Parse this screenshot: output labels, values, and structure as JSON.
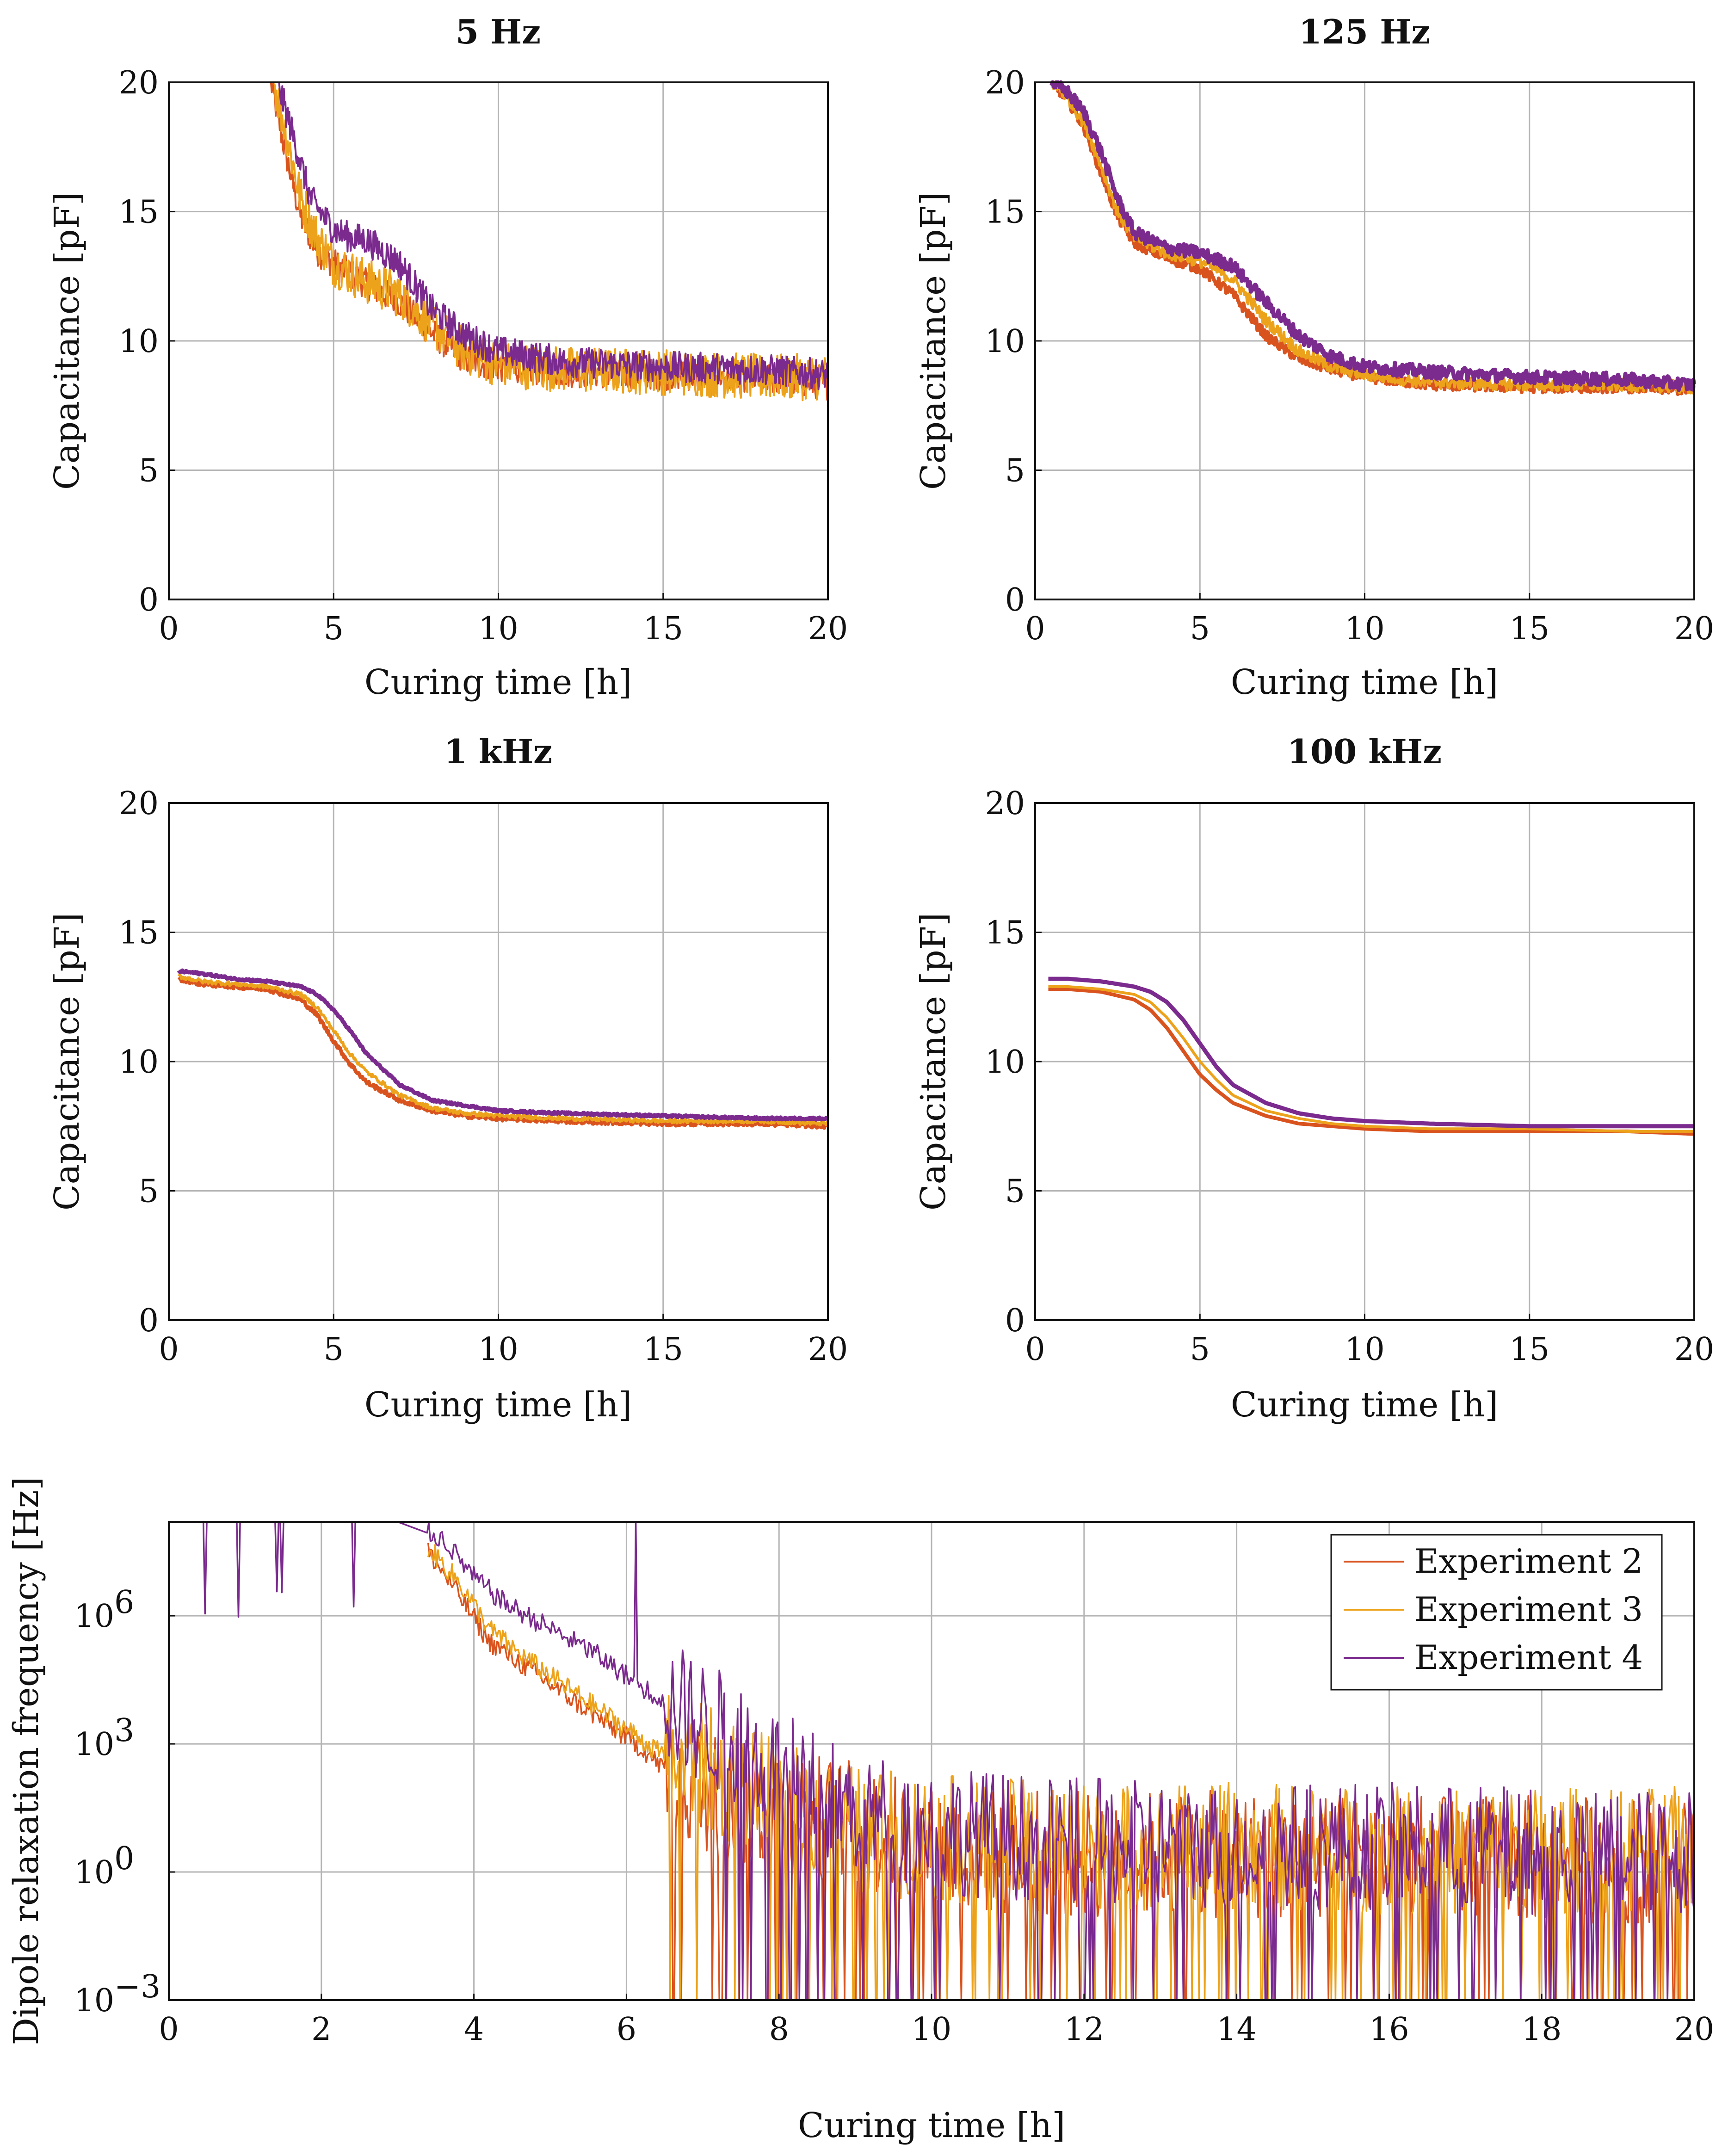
{
  "series_colors": {
    "Experiment 2": "#d9531e",
    "Experiment 3": "#eca21b",
    "Experiment 4": "#7b2a8e"
  },
  "chart_data": [
    {
      "type": "line",
      "title": "5 Hz",
      "xlabel": "Curing time [h]",
      "ylabel": "Capacitance [pF]",
      "xlim": [
        0,
        20
      ],
      "ylim": [
        0,
        20
      ],
      "xticks": [
        0,
        5,
        10,
        15,
        20
      ],
      "yticks": [
        0,
        5,
        10,
        15,
        20
      ],
      "grid": true,
      "noise": [
        0.6,
        0.9,
        0.6
      ],
      "series": [
        {
          "name": "Experiment 2",
          "x": [
            3.1,
            3.5,
            4.0,
            4.5,
            5.0,
            6.0,
            7.0,
            8.0,
            9.0,
            10.0,
            12.0,
            15.0,
            18.0,
            20.0
          ],
          "values": [
            20,
            17.5,
            14.8,
            13.5,
            13.0,
            12.2,
            11.5,
            10.3,
            9.3,
            9.0,
            8.8,
            8.7,
            8.6,
            8.3
          ]
        },
        {
          "name": "Experiment 3",
          "x": [
            3.2,
            3.6,
            4.0,
            4.5,
            5.0,
            6.0,
            7.0,
            8.0,
            9.0,
            10.0,
            12.0,
            15.0,
            18.0,
            20.0
          ],
          "values": [
            20,
            17.8,
            15.5,
            14.0,
            13.0,
            12.3,
            11.8,
            10.6,
            9.6,
            9.1,
            8.9,
            8.8,
            8.6,
            8.6
          ]
        },
        {
          "name": "Experiment 4",
          "x": [
            3.3,
            3.8,
            4.3,
            5.0,
            5.5,
            6.0,
            7.0,
            8.0,
            9.0,
            10.0,
            12.0,
            15.0,
            18.0,
            20.0
          ],
          "values": [
            20,
            17.8,
            15.5,
            14.3,
            14.0,
            13.9,
            13.0,
            11.2,
            10.2,
            9.6,
            9.2,
            9.0,
            8.9,
            8.7
          ]
        }
      ]
    },
    {
      "type": "line",
      "title": "125 Hz",
      "xlabel": "Curing time [h]",
      "ylabel": "Capacitance [pF]",
      "xlim": [
        0,
        20
      ],
      "ylim": [
        0,
        20
      ],
      "xticks": [
        0,
        5,
        10,
        15,
        20
      ],
      "yticks": [
        0,
        5,
        10,
        15,
        20
      ],
      "grid": true,
      "noise": [
        0.2,
        0.25,
        0.25
      ],
      "series": [
        {
          "name": "Experiment 2",
          "x": [
            0.5,
            1.0,
            1.5,
            2.0,
            2.5,
            3.0,
            4.0,
            5.0,
            6.0,
            7.0,
            8.0,
            9.0,
            10.0,
            12.0,
            15.0,
            18.0,
            20.0
          ],
          "values": [
            20,
            19.3,
            18.2,
            16.5,
            14.8,
            13.8,
            13.2,
            12.8,
            11.8,
            10.2,
            9.3,
            8.9,
            8.6,
            8.3,
            8.2,
            8.2,
            8.1
          ]
        },
        {
          "name": "Experiment 3",
          "x": [
            0.5,
            1.0,
            1.5,
            2.0,
            2.5,
            3.0,
            4.0,
            5.0,
            6.0,
            7.0,
            8.0,
            9.0,
            10.0,
            12.0,
            15.0,
            18.0,
            20.0
          ],
          "values": [
            20,
            19.4,
            18.4,
            16.8,
            15.0,
            14.0,
            13.4,
            13.1,
            12.4,
            10.8,
            9.6,
            9.0,
            8.7,
            8.4,
            8.3,
            8.3,
            8.2
          ]
        },
        {
          "name": "Experiment 4",
          "x": [
            0.5,
            1.0,
            1.5,
            2.0,
            2.5,
            3.0,
            4.0,
            5.0,
            6.0,
            7.0,
            8.0,
            9.0,
            10.0,
            12.0,
            15.0,
            18.0,
            20.0
          ],
          "values": [
            20,
            19.6,
            18.8,
            17.3,
            15.5,
            14.2,
            13.6,
            13.4,
            12.9,
            11.5,
            10.2,
            9.4,
            9.0,
            8.8,
            8.6,
            8.5,
            8.3
          ]
        }
      ]
    },
    {
      "type": "line",
      "title": "1 kHz",
      "xlabel": "Curing time [h]",
      "ylabel": "Capacitance [pF]",
      "xlim": [
        0,
        20
      ],
      "ylim": [
        0,
        20
      ],
      "xticks": [
        0,
        5,
        10,
        15,
        20
      ],
      "yticks": [
        0,
        5,
        10,
        15,
        20
      ],
      "grid": true,
      "noise": [
        0.08,
        0.08,
        0.04
      ],
      "series": [
        {
          "name": "Experiment 2",
          "x": [
            0.3,
            1.0,
            2.0,
            3.0,
            4.0,
            4.5,
            5.0,
            5.5,
            6.0,
            7.0,
            8.0,
            9.0,
            10.0,
            12.0,
            15.0,
            18.0,
            20.0
          ],
          "values": [
            13.2,
            13.0,
            12.9,
            12.8,
            12.4,
            11.8,
            10.8,
            9.9,
            9.2,
            8.5,
            8.1,
            7.9,
            7.8,
            7.7,
            7.6,
            7.6,
            7.5
          ]
        },
        {
          "name": "Experiment 3",
          "x": [
            0.3,
            1.0,
            2.0,
            3.0,
            4.0,
            4.5,
            5.0,
            5.5,
            6.0,
            7.0,
            8.0,
            9.0,
            10.0,
            12.0,
            15.0,
            18.0,
            20.0
          ],
          "values": [
            13.3,
            13.1,
            13.0,
            12.9,
            12.6,
            12.1,
            11.2,
            10.3,
            9.6,
            8.7,
            8.2,
            8.0,
            7.9,
            7.8,
            7.7,
            7.7,
            7.6
          ]
        },
        {
          "name": "Experiment 4",
          "x": [
            0.3,
            1.0,
            2.0,
            3.0,
            4.0,
            4.5,
            5.0,
            5.5,
            6.0,
            7.0,
            8.0,
            9.0,
            10.0,
            12.0,
            15.0,
            18.0,
            20.0
          ],
          "values": [
            13.5,
            13.4,
            13.2,
            13.1,
            12.9,
            12.6,
            12.0,
            11.2,
            10.3,
            9.1,
            8.5,
            8.3,
            8.1,
            8.0,
            7.9,
            7.8,
            7.8
          ]
        }
      ]
    },
    {
      "type": "line",
      "title": "100 kHz",
      "xlabel": "Curing time [h]",
      "ylabel": "Capacitance [pF]",
      "xlim": [
        0,
        20
      ],
      "ylim": [
        0,
        20
      ],
      "xticks": [
        0,
        5,
        10,
        15,
        20
      ],
      "yticks": [
        0,
        5,
        10,
        15,
        20
      ],
      "grid": true,
      "noise": [
        0,
        0,
        0
      ],
      "series": [
        {
          "name": "Experiment 2",
          "x": [
            0.4,
            1.0,
            2.0,
            3.0,
            3.5,
            4.0,
            4.5,
            5.0,
            5.5,
            6.0,
            7.0,
            8.0,
            9.0,
            10.0,
            12.0,
            15.0,
            18.0,
            20.0
          ],
          "values": [
            12.8,
            12.8,
            12.7,
            12.4,
            12.0,
            11.3,
            10.4,
            9.5,
            8.9,
            8.4,
            7.9,
            7.6,
            7.5,
            7.4,
            7.3,
            7.3,
            7.3,
            7.2
          ]
        },
        {
          "name": "Experiment 3",
          "x": [
            0.4,
            1.0,
            2.0,
            3.0,
            3.5,
            4.0,
            4.5,
            5.0,
            5.5,
            6.0,
            7.0,
            8.0,
            9.0,
            10.0,
            12.0,
            15.0,
            18.0,
            20.0
          ],
          "values": [
            12.9,
            12.9,
            12.8,
            12.6,
            12.3,
            11.7,
            10.9,
            10.0,
            9.3,
            8.7,
            8.1,
            7.8,
            7.6,
            7.5,
            7.4,
            7.4,
            7.3,
            7.3
          ]
        },
        {
          "name": "Experiment 4",
          "x": [
            0.4,
            1.0,
            2.0,
            3.0,
            3.5,
            4.0,
            4.5,
            5.0,
            5.5,
            6.0,
            7.0,
            8.0,
            9.0,
            10.0,
            12.0,
            15.0,
            18.0,
            20.0
          ],
          "values": [
            13.2,
            13.2,
            13.1,
            12.9,
            12.7,
            12.3,
            11.6,
            10.7,
            9.8,
            9.1,
            8.4,
            8.0,
            7.8,
            7.7,
            7.6,
            7.5,
            7.5,
            7.5
          ]
        }
      ]
    },
    {
      "type": "line",
      "title": "",
      "xlabel": "Curing time [h]",
      "ylabel": "Dipole relaxation frequency [Hz]",
      "yscale": "log",
      "xlim": [
        0,
        20
      ],
      "ylim_log10": [
        -3,
        8.2
      ],
      "xticks": [
        0,
        2,
        4,
        6,
        8,
        10,
        12,
        14,
        16,
        18,
        20
      ],
      "yticks_log10": [
        -3,
        0,
        3,
        6
      ],
      "ytick_labels": [
        "10",
        "10",
        "10",
        "10"
      ],
      "ytick_exponents": [
        "−3",
        "0",
        "3",
        "6"
      ],
      "grid": true,
      "legend": "top-right",
      "series": [
        {
          "name": "Experiment 2",
          "x": [
            3.4,
            3.8,
            4.2,
            4.6,
            5.0,
            5.4,
            5.8,
            6.2,
            6.5,
            6.8,
            7.2,
            7.6,
            8.0,
            8.5,
            9.0,
            10.0,
            12.0,
            14.0,
            16.0,
            18.0,
            20.0
          ],
          "log10_values": [
            7.5,
            6.5,
            5.4,
            4.9,
            4.4,
            3.9,
            3.4,
            2.9,
            2.4,
            2.1,
            1.8,
            1.6,
            1.5,
            1.3,
            1.1,
            0.5,
            0.4,
            0.4,
            0.3,
            0.3,
            0.3
          ]
        },
        {
          "name": "Experiment 3",
          "x": [
            3.4,
            3.8,
            4.2,
            4.6,
            5.0,
            5.4,
            5.8,
            6.2,
            6.5,
            6.8,
            7.2,
            7.6,
            8.0,
            8.5,
            9.0,
            10.0,
            12.0,
            14.0,
            16.0,
            18.0,
            20.0
          ],
          "log10_values": [
            7.6,
            6.8,
            5.7,
            5.1,
            4.6,
            4.1,
            3.6,
            3.1,
            2.7,
            2.6,
            2.3,
            1.9,
            1.6,
            1.3,
            1.0,
            0.8,
            0.6,
            0.6,
            0.5,
            0.5,
            0.5
          ]
        },
        {
          "name": "Experiment 4",
          "x": [
            0.3,
            1.0,
            2.0,
            3.0,
            3.6,
            4.0,
            4.4,
            4.8,
            5.2,
            5.6,
            6.0,
            6.4,
            6.8,
            7.2,
            7.6,
            8.0,
            8.6,
            9.2,
            10.0,
            12.0,
            14.0,
            16.0,
            18.0,
            20.0
          ],
          "log10_values": [
            8.2,
            8.2,
            8.2,
            8.2,
            7.8,
            6.9,
            6.3,
            5.9,
            5.5,
            5.1,
            4.6,
            4.1,
            3.7,
            3.3,
            2.9,
            2.3,
            1.7,
            1.3,
            1.0,
            0.7,
            0.6,
            0.6,
            0.5,
            0.5
          ]
        }
      ]
    }
  ]
}
